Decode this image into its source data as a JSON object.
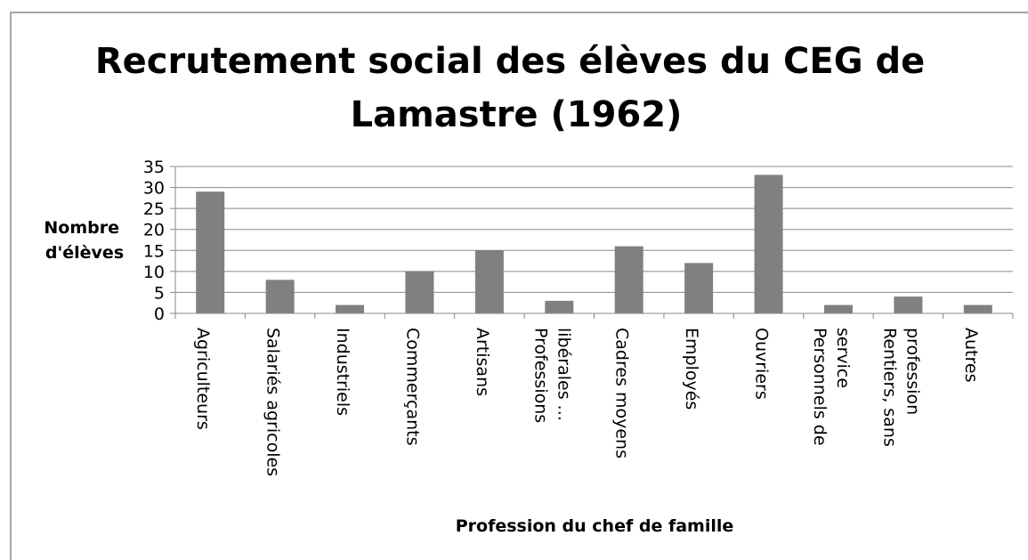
{
  "chart_data": {
    "type": "bar",
    "title": "Recrutement social des élèves du CEG de Lamastre (1962)",
    "y_label": "Nombre d'élèves",
    "x_label": "Profession du chef de famille",
    "categories": [
      "Agriculteurs",
      "Salariés agricoles",
      "Industriels",
      "Commerçants",
      "Artisans",
      "Professions libérales ...",
      "Cadres moyens",
      "Employés",
      "Ouvriers",
      "Personnels de service",
      "Rentiers, sans profession",
      "Autres"
    ],
    "values": [
      29,
      8,
      2,
      10,
      15,
      3,
      16,
      12,
      33,
      2,
      4,
      2
    ],
    "color": "#808080",
    "ylim": [
      0,
      35
    ],
    "yticks": [
      0,
      5,
      10,
      15,
      20,
      25,
      30,
      35
    ],
    "grid": true
  }
}
